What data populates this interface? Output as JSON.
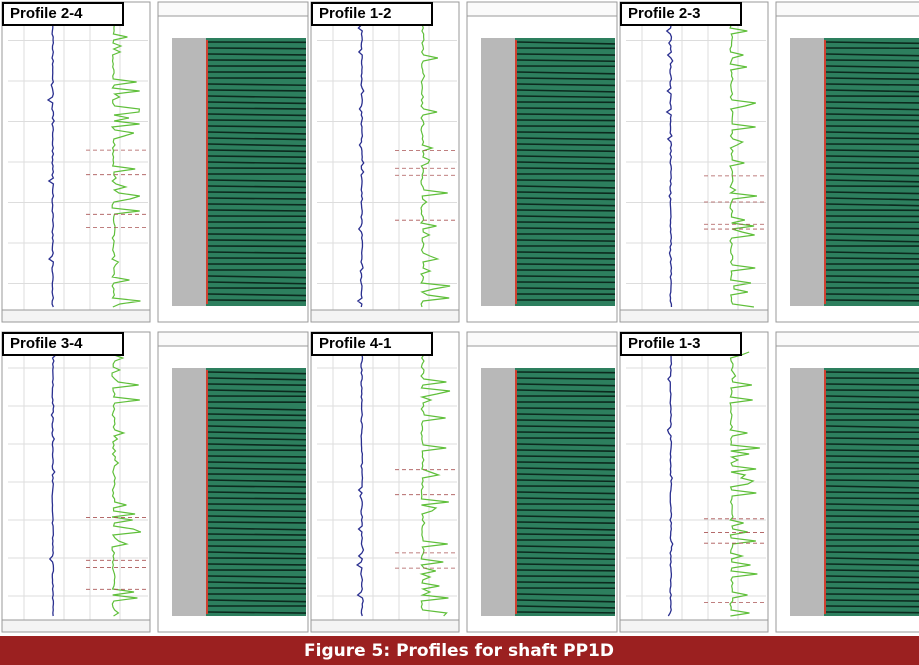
{
  "panels": [
    {
      "label": "Profile 2-4"
    },
    {
      "label": "Profile 1-2"
    },
    {
      "label": "Profile 2-3"
    },
    {
      "label": "Profile 3-4"
    },
    {
      "label": "Profile 4-1"
    },
    {
      "label": "Profile 1-3"
    }
  ],
  "caption": "Figure 5:  Profiles for shaft PP1D"
}
